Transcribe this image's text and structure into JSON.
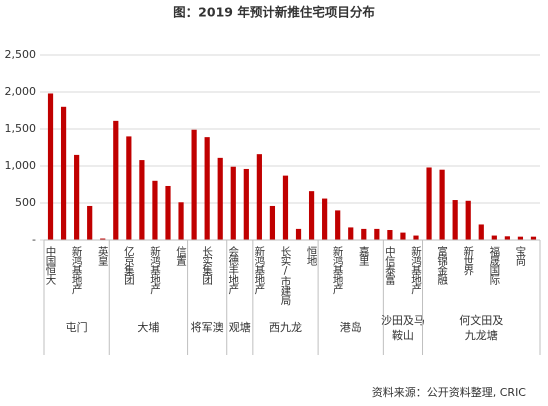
{
  "chart_data": {
    "type": "bar",
    "title": "图：2019 年预计新推住宅项目分布",
    "source": "资料来源：公开资料整理, CRIC",
    "color": "#c00000",
    "ylim": [
      0,
      2500
    ],
    "yticks": [
      {
        "value": 0,
        "label": "-"
      },
      500,
      {
        "value": 1000,
        "label": "1,000"
      },
      {
        "value": 1500,
        "label": "1,500"
      },
      {
        "value": 2000,
        "label": "2,000"
      },
      {
        "value": 2500,
        "label": "2,500"
      }
    ],
    "grid": true,
    "groups": [
      {
        "name": "屯门",
        "categories": [
          "中国恒大",
          null,
          "新鸿基地产",
          null,
          "英皇"
        ],
        "values": [
          1980,
          1800,
          1150,
          460,
          20
        ]
      },
      {
        "name": "大埔",
        "categories": [
          null,
          "亿京集团",
          null,
          "新鸿基地产",
          null,
          "信置"
        ],
        "values": [
          1610,
          1400,
          1080,
          800,
          730,
          510
        ]
      },
      {
        "name": "将军澳",
        "categories": [
          null,
          "长实集团",
          null
        ],
        "values": [
          1490,
          1390,
          1110
        ]
      },
      {
        "name": "观塘",
        "categories": [
          "会德丰地产",
          null
        ],
        "values": [
          990,
          960
        ]
      },
      {
        "name": "西九龙",
        "categories": [
          "新鸿基地产",
          null,
          "长实/市建局",
          null,
          "恒地"
        ],
        "values": [
          1160,
          460,
          870,
          150,
          660
        ]
      },
      {
        "name": "港岛",
        "categories": [
          null,
          "新鸿基地产",
          null,
          "嘉里",
          null
        ],
        "values": [
          560,
          400,
          170,
          150,
          150
        ]
      },
      {
        "name": "沙田及马鞍山",
        "categories": [
          "中信泰富",
          null,
          "新鸿基地产"
        ],
        "values": [
          135,
          100,
          60
        ]
      },
      {
        "name": "何文田及九龙塘",
        "categories": [
          null,
          "富锦金融",
          null,
          "新世界",
          null,
          "福晟国际",
          null,
          "宝尚",
          null
        ],
        "values": [
          980,
          950,
          540,
          530,
          210,
          60,
          50,
          45,
          45
        ]
      }
    ]
  }
}
